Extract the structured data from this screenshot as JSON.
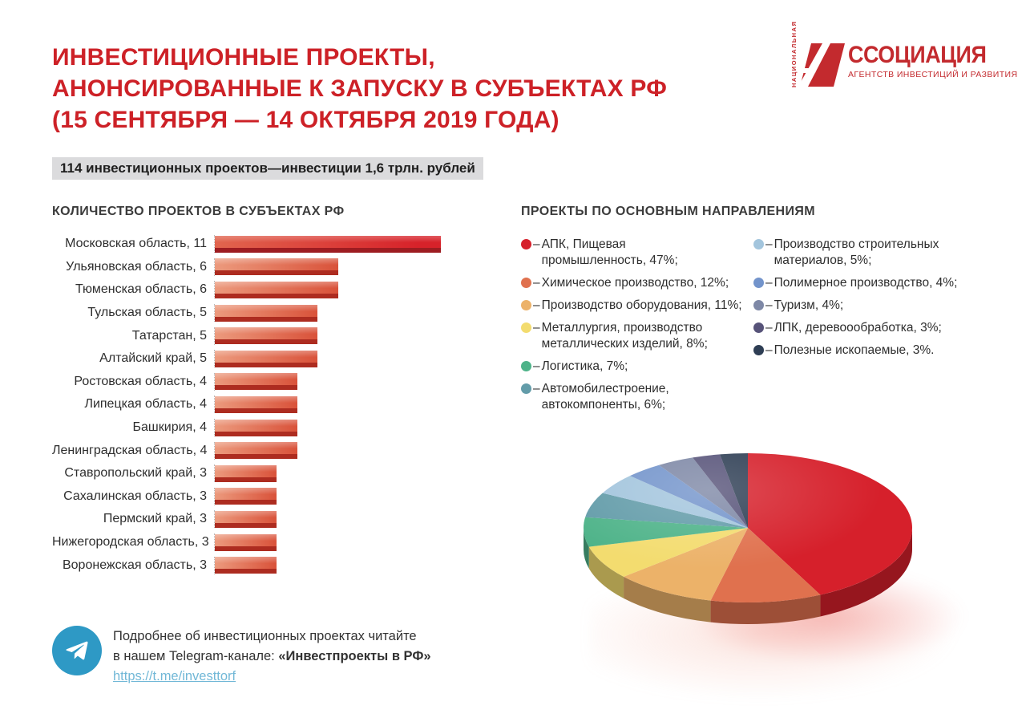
{
  "header": {
    "title_lines": [
      "ИНВЕСТИЦИОННЫЕ ПРОЕКТЫ,",
      "АНОНСИРОВАННЫЕ К ЗАПУСКУ В СУБЪЕКТАХ РФ",
      "(15 СЕНТЯБРЯ — 14 ОКТЯБРЯ 2019 ГОДА)"
    ],
    "title_color": "#cd2127",
    "logo": {
      "vertical_text": "НАЦИОНАЛЬНАЯ",
      "wordmark": "ССОЦИАЦИЯ",
      "tagline": "АГЕНТСТВ ИНВЕСТИЦИЙ И РАЗВИТИЯ",
      "color": "#c32a2e"
    }
  },
  "summary_badge": {
    "text": "114 инвестиционных проектов—инвестиции 1,6 трлн. рублей",
    "background": "#dbdbdd"
  },
  "legend_dash": "–",
  "chart_data": [
    {
      "type": "bar",
      "orientation": "horizontal",
      "title": "КОЛИЧЕСТВО ПРОЕКТОВ В СУБЪЕКТАХ РФ",
      "categories": [
        "Московская область",
        "Ульяновская область",
        "Тюменская область",
        "Тульская область",
        "Татарстан",
        "Алтайский край",
        "Ростовская область",
        "Липецкая область",
        "Башкирия",
        "Ленинградская область",
        "Ставропольский край",
        "Сахалинская область",
        "Пермский край",
        "Нижегородская область",
        "Воронежская область"
      ],
      "values": [
        11,
        6,
        6,
        5,
        5,
        5,
        4,
        4,
        4,
        4,
        3,
        3,
        3,
        3,
        3
      ],
      "labels": [
        "Московская область, 11",
        "Ульяновская область, 6",
        "Тюменская область, 6",
        "Тульская область, 5",
        "Татарстан, 5",
        "Алтайский край, 5",
        "Ростовская область, 4",
        "Липецкая область, 4",
        "Башкирия, 4",
        "Ленинградская область, 4",
        "Ставропольский край, 3",
        "Сахалинская область, 3",
        "Пермский край, 3",
        "Нижегородская область, 3",
        "Воронежская область, 3"
      ],
      "xlim": [
        0,
        11
      ],
      "grid": false,
      "bar_colors": {
        "first": [
          "#e1654e",
          "#d7222a",
          "#9d1c21"
        ],
        "rest": [
          "#ec9a7d",
          "#d9523a",
          "#ad2c20"
        ]
      }
    },
    {
      "type": "pie",
      "style": "3d",
      "title": "ПРОЕКТЫ ПО ОСНОВНЫМ НАПРАВЛЕНИЯМ",
      "legend_position": "above-right, two columns",
      "slices": [
        {
          "label": "АПК, Пищевая промышленность",
          "value": 47,
          "color": "#d6202b",
          "column": 1,
          "legend_lines": [
            "АПК, Пищевая",
            "промышленность, 47%;"
          ]
        },
        {
          "label": "Химическое производство",
          "value": 12,
          "color": "#e0714e",
          "column": 1,
          "legend_lines": [
            "Химическое производство, 12%;"
          ]
        },
        {
          "label": "Производство оборудования",
          "value": 11,
          "color": "#ecb269",
          "column": 1,
          "legend_lines": [
            "Производство оборудования, 11%;"
          ]
        },
        {
          "label": "Металлургия, производство металлических изделий",
          "value": 8,
          "color": "#f3dc6f",
          "column": 1,
          "legend_lines": [
            "Металлургия, производство",
            "металлических изделий, 8%;"
          ]
        },
        {
          "label": "Логистика",
          "value": 7,
          "color": "#4eb389",
          "column": 1,
          "legend_lines": [
            "Логистика, 7%;"
          ]
        },
        {
          "label": "Автомобилестроение, автокомпоненты",
          "value": 6,
          "color": "#639ca9",
          "column": 1,
          "legend_lines": [
            "Автомобилестроение,",
            "автокомпоненты, 6%;"
          ]
        },
        {
          "label": "Производство строительных материалов",
          "value": 5,
          "color": "#a3c5dd",
          "column": 2,
          "legend_lines": [
            "Производство строительных",
            "материалов, 5%;"
          ]
        },
        {
          "label": "Полимерное производство",
          "value": 4,
          "color": "#7394cb",
          "column": 2,
          "legend_lines": [
            "Полимерное производство, 4%;"
          ]
        },
        {
          "label": "Туризм",
          "value": 4,
          "color": "#7e88a6",
          "column": 2,
          "legend_lines": [
            "Туризм, 4%;"
          ]
        },
        {
          "label": "ЛПК, деревоообработка",
          "value": 3,
          "color": "#575379",
          "column": 2,
          "legend_lines": [
            "ЛПК, деревоообработка, 3%;"
          ]
        },
        {
          "label": "Полезные ископаемые",
          "value": 3,
          "color": "#2e3e54",
          "column": 2,
          "legend_lines": [
            "Полезные ископаемые, 3%."
          ]
        }
      ]
    }
  ],
  "telegram": {
    "icon": "telegram-plane-icon",
    "icon_color": "#2e99c5",
    "line1": "Подробнее об инвестиционных проектах читайте",
    "line2_prefix": "в нашем Telegram-канале: ",
    "line2_bold": "«Инвестпроекты в РФ»",
    "link_text": "https://t.me/investtorf",
    "link_color": "#72b8d7"
  }
}
